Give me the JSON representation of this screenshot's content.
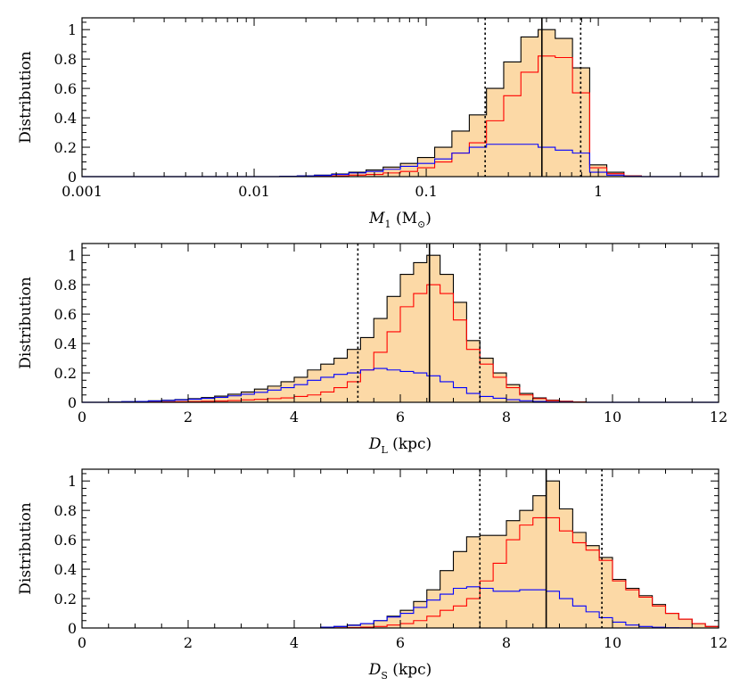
{
  "chart_data": [
    {
      "type": "histogram",
      "xscale": "log",
      "xlim": [
        0.001,
        5
      ],
      "ylim": [
        0,
        1.08
      ],
      "ylabel": "Distribution",
      "xlabel": {
        "main": "M",
        "sub": "1",
        "unit_open": " (M",
        "unit_sub": "⊙",
        "unit_close": ")"
      },
      "xtick_labels": [
        {
          "value": 0.001,
          "label": "0.001"
        },
        {
          "value": 0.01,
          "label": "0.01"
        },
        {
          "value": 0.1,
          "label": "0.1"
        },
        {
          "value": 1,
          "label": "1"
        }
      ],
      "ytick_labels": [
        {
          "value": 0,
          "label": "0"
        },
        {
          "value": 0.2,
          "label": "0.2"
        },
        {
          "value": 0.4,
          "label": "0.4"
        },
        {
          "value": 0.6,
          "label": "0.6"
        },
        {
          "value": 0.8,
          "label": "0.8"
        },
        {
          "value": 1,
          "label": "1"
        }
      ],
      "median": 0.47,
      "interval": [
        0.22,
        0.79
      ],
      "colors": {
        "total": "#000000",
        "fill": "#fcd9a6",
        "red": "#ff0000",
        "blue": "#0000ff"
      },
      "series": [
        {
          "role": "total",
          "bin_edges": [
            0.0141,
            0.0178,
            0.0224,
            0.0282,
            0.0355,
            0.0447,
            0.0562,
            0.0708,
            0.0891,
            0.112,
            0.141,
            0.178,
            0.224,
            0.282,
            0.355,
            0.447,
            0.562,
            0.708,
            0.891,
            1.12,
            1.41,
            1.78
          ],
          "values": [
            0.002,
            0.005,
            0.01,
            0.018,
            0.03,
            0.045,
            0.065,
            0.09,
            0.13,
            0.2,
            0.31,
            0.42,
            0.6,
            0.78,
            0.95,
            1.0,
            0.94,
            0.74,
            0.08,
            0.03,
            0.005
          ]
        },
        {
          "role": "red",
          "bin_edges": [
            0.0141,
            0.0178,
            0.0224,
            0.0282,
            0.0355,
            0.0447,
            0.0562,
            0.0708,
            0.0891,
            0.112,
            0.141,
            0.178,
            0.224,
            0.282,
            0.355,
            0.447,
            0.562,
            0.708,
            0.891,
            1.12,
            1.41,
            1.78
          ],
          "values": [
            0.0,
            0.001,
            0.003,
            0.005,
            0.01,
            0.015,
            0.025,
            0.035,
            0.06,
            0.1,
            0.16,
            0.23,
            0.38,
            0.55,
            0.71,
            0.82,
            0.81,
            0.57,
            0.06,
            0.02,
            0.004
          ]
        },
        {
          "role": "blue",
          "bin_edges": [
            0.0141,
            0.0178,
            0.0224,
            0.0282,
            0.0355,
            0.0447,
            0.0562,
            0.0708,
            0.0891,
            0.112,
            0.141,
            0.178,
            0.224,
            0.282,
            0.355,
            0.447,
            0.562,
            0.708,
            0.891,
            1.12,
            1.41,
            1.78
          ],
          "values": [
            0.002,
            0.004,
            0.008,
            0.015,
            0.025,
            0.035,
            0.05,
            0.07,
            0.09,
            0.12,
            0.16,
            0.2,
            0.22,
            0.22,
            0.22,
            0.2,
            0.18,
            0.16,
            0.03,
            0.01,
            0.002
          ]
        }
      ]
    },
    {
      "type": "histogram",
      "xscale": "linear",
      "xlim": [
        0,
        12
      ],
      "ylim": [
        0,
        1.08
      ],
      "ylabel": "Distribution",
      "xlabel": {
        "main": "D",
        "sub": "L",
        "unit_open": " (kpc)",
        "unit_sub": "",
        "unit_close": ""
      },
      "xtick_labels": [
        {
          "value": 0,
          "label": "0"
        },
        {
          "value": 2,
          "label": "2"
        },
        {
          "value": 4,
          "label": "4"
        },
        {
          "value": 6,
          "label": "6"
        },
        {
          "value": 8,
          "label": "8"
        },
        {
          "value": 10,
          "label": "10"
        },
        {
          "value": 12,
          "label": "12"
        }
      ],
      "ytick_labels": [
        {
          "value": 0,
          "label": "0"
        },
        {
          "value": 0.2,
          "label": "0.2"
        },
        {
          "value": 0.4,
          "label": "0.4"
        },
        {
          "value": 0.6,
          "label": "0.6"
        },
        {
          "value": 0.8,
          "label": "0.8"
        },
        {
          "value": 1,
          "label": "1"
        }
      ],
      "median": 6.55,
      "interval": [
        5.2,
        7.5
      ],
      "colors": {
        "total": "#000000",
        "fill": "#fcd9a6",
        "red": "#ff0000",
        "blue": "#0000ff"
      },
      "series": [
        {
          "role": "total",
          "bin_edges": [
            0.5,
            0.75,
            1.0,
            1.25,
            1.5,
            1.75,
            2.0,
            2.25,
            2.5,
            2.75,
            3.0,
            3.25,
            3.5,
            3.75,
            4.0,
            4.25,
            4.5,
            4.75,
            5.0,
            5.25,
            5.5,
            5.75,
            6.0,
            6.25,
            6.5,
            6.75,
            7.0,
            7.25,
            7.5,
            7.75,
            8.0,
            8.25,
            8.5,
            8.75,
            9.0,
            9.25,
            9.5
          ],
          "values": [
            0.002,
            0.004,
            0.006,
            0.01,
            0.014,
            0.019,
            0.025,
            0.032,
            0.042,
            0.055,
            0.07,
            0.09,
            0.11,
            0.14,
            0.17,
            0.22,
            0.26,
            0.3,
            0.36,
            0.44,
            0.57,
            0.72,
            0.87,
            0.95,
            1.0,
            0.87,
            0.68,
            0.42,
            0.3,
            0.2,
            0.12,
            0.06,
            0.03,
            0.015,
            0.007,
            0.003
          ]
        },
        {
          "role": "red",
          "bin_edges": [
            0.5,
            0.75,
            1.0,
            1.25,
            1.5,
            1.75,
            2.0,
            2.25,
            2.5,
            2.75,
            3.0,
            3.25,
            3.5,
            3.75,
            4.0,
            4.25,
            4.5,
            4.75,
            5.0,
            5.25,
            5.5,
            5.75,
            6.0,
            6.25,
            6.5,
            6.75,
            7.0,
            7.25,
            7.5,
            7.75,
            8.0,
            8.25,
            8.5,
            8.75,
            9.0,
            9.25,
            9.5
          ],
          "values": [
            0.0,
            0.0,
            0.001,
            0.002,
            0.003,
            0.004,
            0.005,
            0.007,
            0.009,
            0.012,
            0.016,
            0.02,
            0.025,
            0.03,
            0.04,
            0.05,
            0.07,
            0.1,
            0.14,
            0.22,
            0.34,
            0.48,
            0.65,
            0.74,
            0.8,
            0.74,
            0.56,
            0.36,
            0.26,
            0.17,
            0.1,
            0.05,
            0.025,
            0.012,
            0.006,
            0.002
          ]
        },
        {
          "role": "blue",
          "bin_edges": [
            0.5,
            0.75,
            1.0,
            1.25,
            1.5,
            1.75,
            2.0,
            2.25,
            2.5,
            2.75,
            3.0,
            3.25,
            3.5,
            3.75,
            4.0,
            4.25,
            4.5,
            4.75,
            5.0,
            5.25,
            5.5,
            5.75,
            6.0,
            6.25,
            6.5,
            6.75,
            7.0,
            7.25,
            7.5,
            7.75,
            8.0,
            8.25,
            8.5,
            8.75,
            9.0,
            9.25,
            9.5
          ],
          "values": [
            0.002,
            0.004,
            0.006,
            0.009,
            0.012,
            0.016,
            0.021,
            0.027,
            0.034,
            0.044,
            0.055,
            0.068,
            0.083,
            0.1,
            0.12,
            0.15,
            0.17,
            0.19,
            0.2,
            0.22,
            0.23,
            0.22,
            0.21,
            0.2,
            0.18,
            0.14,
            0.1,
            0.06,
            0.04,
            0.028,
            0.018,
            0.01,
            0.006,
            0.003,
            0.001,
            0.0
          ]
        }
      ]
    },
    {
      "type": "histogram",
      "xscale": "linear",
      "xlim": [
        0,
        12
      ],
      "ylim": [
        0,
        1.08
      ],
      "ylabel": "Distribution",
      "xlabel": {
        "main": "D",
        "sub": "S",
        "unit_open": " (kpc)",
        "unit_sub": "",
        "unit_close": ""
      },
      "xtick_labels": [
        {
          "value": 0,
          "label": "0"
        },
        {
          "value": 2,
          "label": "2"
        },
        {
          "value": 4,
          "label": "4"
        },
        {
          "value": 6,
          "label": "6"
        },
        {
          "value": 8,
          "label": "8"
        },
        {
          "value": 10,
          "label": "10"
        },
        {
          "value": 12,
          "label": "12"
        }
      ],
      "ytick_labels": [
        {
          "value": 0,
          "label": "0"
        },
        {
          "value": 0.2,
          "label": "0.2"
        },
        {
          "value": 0.4,
          "label": "0.4"
        },
        {
          "value": 0.6,
          "label": "0.6"
        },
        {
          "value": 0.8,
          "label": "0.8"
        },
        {
          "value": 1,
          "label": "1"
        }
      ],
      "median": 8.75,
      "interval": [
        7.5,
        9.8
      ],
      "colors": {
        "total": "#000000",
        "fill": "#fcd9a6",
        "red": "#ff0000",
        "blue": "#0000ff"
      },
      "series": [
        {
          "role": "total",
          "bin_edges": [
            0,
            4.5,
            4.75,
            5.0,
            5.25,
            5.5,
            5.75,
            6.0,
            6.25,
            6.5,
            6.75,
            7.0,
            7.25,
            7.5,
            7.75,
            8.0,
            8.25,
            8.5,
            8.75,
            9.0,
            9.25,
            9.5,
            9.75,
            10.0,
            10.25,
            10.5,
            10.75,
            11.0,
            11.25,
            11.5,
            11.75,
            12.0
          ],
          "values": [
            0.0,
            0.005,
            0.01,
            0.02,
            0.03,
            0.05,
            0.08,
            0.12,
            0.18,
            0.26,
            0.39,
            0.52,
            0.62,
            0.63,
            0.63,
            0.73,
            0.8,
            0.9,
            1.0,
            0.81,
            0.65,
            0.56,
            0.48,
            0.33,
            0.27,
            0.22,
            0.16,
            0.1,
            0.06,
            0.03,
            0.01
          ]
        },
        {
          "role": "red",
          "bin_edges": [
            0,
            4.5,
            4.75,
            5.0,
            5.25,
            5.5,
            5.75,
            6.0,
            6.25,
            6.5,
            6.75,
            7.0,
            7.25,
            7.5,
            7.75,
            8.0,
            8.25,
            8.5,
            8.75,
            9.0,
            9.25,
            9.5,
            9.75,
            10.0,
            10.25,
            10.5,
            10.75,
            11.0,
            11.25,
            11.5,
            11.75,
            12.0
          ],
          "values": [
            0.0,
            0.0,
            0.001,
            0.003,
            0.006,
            0.01,
            0.02,
            0.03,
            0.05,
            0.08,
            0.12,
            0.15,
            0.2,
            0.32,
            0.44,
            0.6,
            0.7,
            0.75,
            0.75,
            0.66,
            0.58,
            0.53,
            0.46,
            0.32,
            0.26,
            0.21,
            0.15,
            0.1,
            0.06,
            0.03,
            0.01
          ]
        },
        {
          "role": "blue",
          "bin_edges": [
            0,
            4.5,
            4.75,
            5.0,
            5.25,
            5.5,
            5.75,
            6.0,
            6.25,
            6.5,
            6.75,
            7.0,
            7.25,
            7.5,
            7.75,
            8.0,
            8.25,
            8.5,
            8.75,
            9.0,
            9.25,
            9.5,
            9.75,
            10.0,
            10.25,
            10.5,
            10.75,
            11.0,
            11.25,
            11.5,
            11.75,
            12.0
          ],
          "values": [
            0.0,
            0.005,
            0.01,
            0.018,
            0.03,
            0.05,
            0.075,
            0.1,
            0.14,
            0.19,
            0.23,
            0.27,
            0.28,
            0.27,
            0.25,
            0.25,
            0.26,
            0.26,
            0.25,
            0.2,
            0.15,
            0.11,
            0.07,
            0.04,
            0.02,
            0.01,
            0.005,
            0.002,
            0.001,
            0.0,
            0.0
          ]
        }
      ]
    }
  ]
}
